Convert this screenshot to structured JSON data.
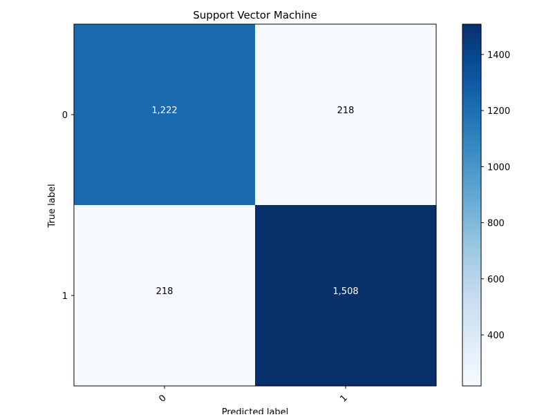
{
  "chart_data": {
    "type": "heatmap",
    "title": "Support Vector Machine",
    "xlabel": "Predicted label",
    "ylabel": "True label",
    "x_categories": [
      "0",
      "1"
    ],
    "y_categories": [
      "0",
      "1"
    ],
    "values": [
      [
        1222,
        218
      ],
      [
        218,
        1508
      ]
    ],
    "cell_labels": [
      [
        "1,222",
        "218"
      ],
      [
        "218",
        "1,508"
      ]
    ],
    "colormap": "Blues",
    "colorbar": {
      "range": [
        218,
        1508
      ],
      "ticks": [
        400,
        600,
        800,
        1000,
        1200,
        1400
      ],
      "tick_labels": [
        "400",
        "600",
        "800",
        "1000",
        "1200",
        "1400"
      ]
    },
    "x_tick_rotation": "45deg",
    "grid": false
  }
}
